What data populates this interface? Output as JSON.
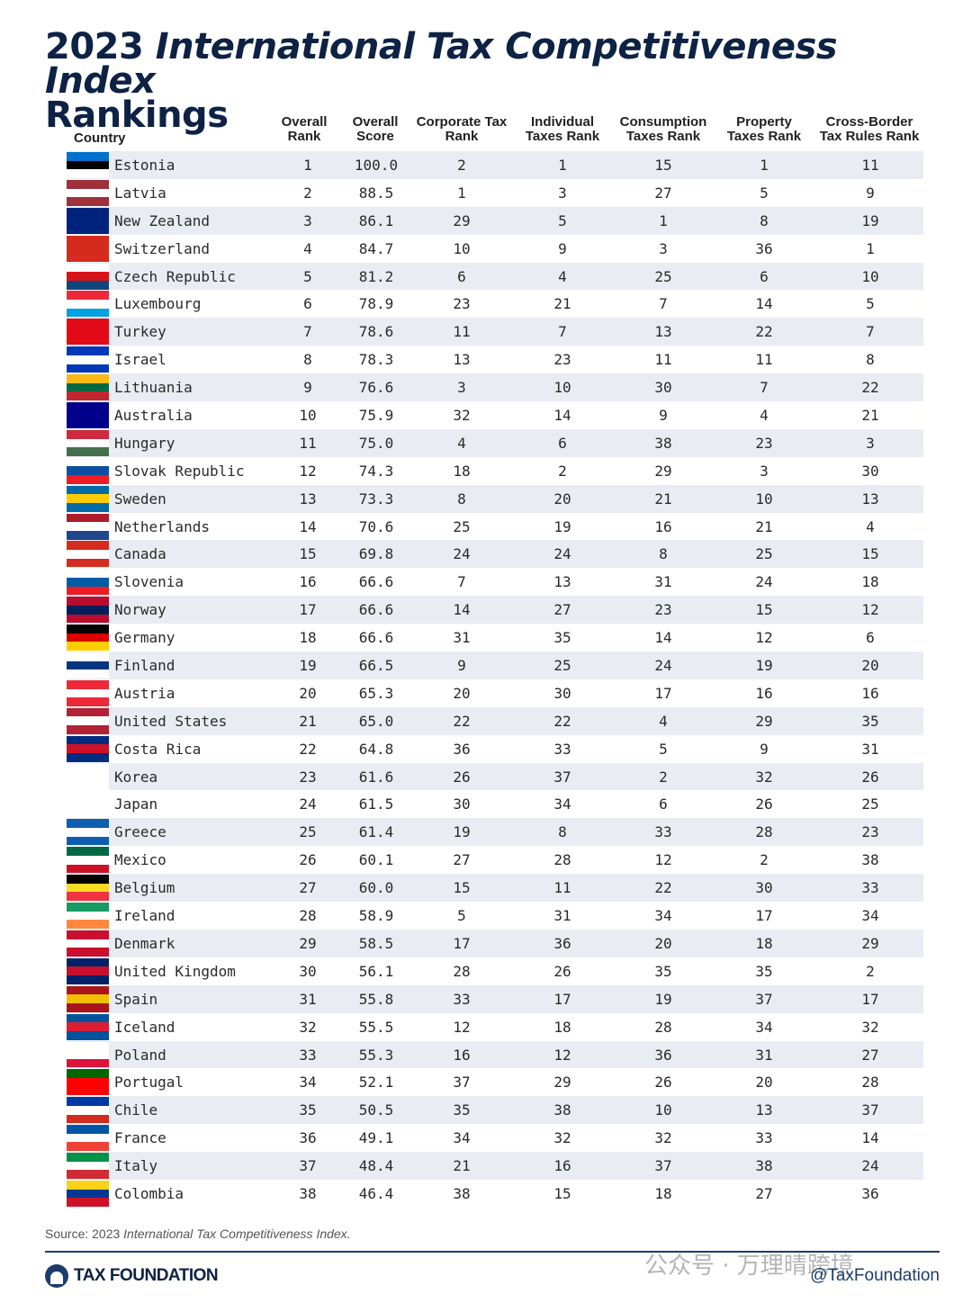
{
  "title": {
    "year": "2023",
    "italic": "International Tax Competitiveness Index",
    "line2": "Rankings"
  },
  "headers": {
    "country": "Country",
    "overall_rank": [
      "Overall",
      "Rank"
    ],
    "overall_score": [
      "Overall",
      "Score"
    ],
    "corporate": [
      "Corporate Tax",
      "Rank"
    ],
    "individual": [
      "Individual",
      "Taxes Rank"
    ],
    "consumption": [
      "Consumption",
      "Taxes Rank"
    ],
    "property": [
      "Property",
      "Taxes Rank"
    ],
    "crossborder": [
      "Cross-Border",
      "Tax Rules Rank"
    ]
  },
  "rows": [
    {
      "country": "Estonia",
      "flag": [
        "#0072ce",
        "#000000",
        "#ffffff"
      ],
      "rank": "1",
      "score": "100.0",
      "corp": "2",
      "indiv": "1",
      "cons": "15",
      "prop": "1",
      "cross": "11"
    },
    {
      "country": "Latvia",
      "flag": [
        "#9e3039",
        "#ffffff",
        "#9e3039"
      ],
      "rank": "2",
      "score": "88.5",
      "corp": "1",
      "indiv": "3",
      "cons": "27",
      "prop": "5",
      "cross": "9"
    },
    {
      "country": "New Zealand",
      "flag": [
        "#00247d",
        "#00247d",
        "#00247d"
      ],
      "rank": "3",
      "score": "86.1",
      "corp": "29",
      "indiv": "5",
      "cons": "1",
      "prop": "8",
      "cross": "19"
    },
    {
      "country": "Switzerland",
      "flag": [
        "#d52b1e",
        "#d52b1e",
        "#d52b1e"
      ],
      "rank": "4",
      "score": "84.7",
      "corp": "10",
      "indiv": "9",
      "cons": "3",
      "prop": "36",
      "cross": "1"
    },
    {
      "country": "Czech Republic",
      "flag": [
        "#ffffff",
        "#d7141a",
        "#11457e"
      ],
      "rank": "5",
      "score": "81.2",
      "corp": "6",
      "indiv": "4",
      "cons": "25",
      "prop": "6",
      "cross": "10"
    },
    {
      "country": "Luxembourg",
      "flag": [
        "#ed2939",
        "#ffffff",
        "#00a1de"
      ],
      "rank": "6",
      "score": "78.9",
      "corp": "23",
      "indiv": "21",
      "cons": "7",
      "prop": "14",
      "cross": "5"
    },
    {
      "country": "Turkey",
      "flag": [
        "#e30a17",
        "#e30a17",
        "#e30a17"
      ],
      "rank": "7",
      "score": "78.6",
      "corp": "11",
      "indiv": "7",
      "cons": "13",
      "prop": "22",
      "cross": "7"
    },
    {
      "country": "Israel",
      "flag": [
        "#0038b8",
        "#ffffff",
        "#0038b8"
      ],
      "rank": "8",
      "score": "78.3",
      "corp": "13",
      "indiv": "23",
      "cons": "11",
      "prop": "11",
      "cross": "8"
    },
    {
      "country": "Lithuania",
      "flag": [
        "#fdb913",
        "#006a44",
        "#c1272d"
      ],
      "rank": "9",
      "score": "76.6",
      "corp": "3",
      "indiv": "10",
      "cons": "30",
      "prop": "7",
      "cross": "22"
    },
    {
      "country": "Australia",
      "flag": [
        "#00008b",
        "#00008b",
        "#00008b"
      ],
      "rank": "10",
      "score": "75.9",
      "corp": "32",
      "indiv": "14",
      "cons": "9",
      "prop": "4",
      "cross": "21"
    },
    {
      "country": "Hungary",
      "flag": [
        "#cd2a3e",
        "#ffffff",
        "#436f4d"
      ],
      "rank": "11",
      "score": "75.0",
      "corp": "4",
      "indiv": "6",
      "cons": "38",
      "prop": "23",
      "cross": "3"
    },
    {
      "country": "Slovak Republic",
      "flag": [
        "#ffffff",
        "#0b4ea2",
        "#ee1c25"
      ],
      "rank": "12",
      "score": "74.3",
      "corp": "18",
      "indiv": "2",
      "cons": "29",
      "prop": "3",
      "cross": "30"
    },
    {
      "country": "Sweden",
      "flag": [
        "#006aa7",
        "#fecc00",
        "#006aa7"
      ],
      "rank": "13",
      "score": "73.3",
      "corp": "8",
      "indiv": "20",
      "cons": "21",
      "prop": "10",
      "cross": "13"
    },
    {
      "country": "Netherlands",
      "flag": [
        "#ae1c28",
        "#ffffff",
        "#21468b"
      ],
      "rank": "14",
      "score": "70.6",
      "corp": "25",
      "indiv": "19",
      "cons": "16",
      "prop": "21",
      "cross": "4"
    },
    {
      "country": "Canada",
      "flag": [
        "#d52b1e",
        "#ffffff",
        "#d52b1e"
      ],
      "rank": "15",
      "score": "69.8",
      "corp": "24",
      "indiv": "24",
      "cons": "8",
      "prop": "25",
      "cross": "15"
    },
    {
      "country": "Slovenia",
      "flag": [
        "#ffffff",
        "#005da4",
        "#ed1c24"
      ],
      "rank": "16",
      "score": "66.6",
      "corp": "7",
      "indiv": "13",
      "cons": "31",
      "prop": "24",
      "cross": "18"
    },
    {
      "country": "Norway",
      "flag": [
        "#ba0c2f",
        "#00205b",
        "#ba0c2f"
      ],
      "rank": "17",
      "score": "66.6",
      "corp": "14",
      "indiv": "27",
      "cons": "23",
      "prop": "15",
      "cross": "12"
    },
    {
      "country": "Germany",
      "flag": [
        "#000000",
        "#dd0000",
        "#ffce00"
      ],
      "rank": "18",
      "score": "66.6",
      "corp": "31",
      "indiv": "35",
      "cons": "14",
      "prop": "12",
      "cross": "6"
    },
    {
      "country": "Finland",
      "flag": [
        "#ffffff",
        "#003580",
        "#ffffff"
      ],
      "rank": "19",
      "score": "66.5",
      "corp": "9",
      "indiv": "25",
      "cons": "24",
      "prop": "19",
      "cross": "20"
    },
    {
      "country": "Austria",
      "flag": [
        "#ed2939",
        "#ffffff",
        "#ed2939"
      ],
      "rank": "20",
      "score": "65.3",
      "corp": "20",
      "indiv": "30",
      "cons": "17",
      "prop": "16",
      "cross": "16"
    },
    {
      "country": "United States",
      "flag": [
        "#b22234",
        "#ffffff",
        "#b22234"
      ],
      "rank": "21",
      "score": "65.0",
      "corp": "22",
      "indiv": "22",
      "cons": "4",
      "prop": "29",
      "cross": "35"
    },
    {
      "country": "Costa Rica",
      "flag": [
        "#002b7f",
        "#ce1126",
        "#002b7f"
      ],
      "rank": "22",
      "score": "64.8",
      "corp": "36",
      "indiv": "33",
      "cons": "5",
      "prop": "9",
      "cross": "31"
    },
    {
      "country": "Korea",
      "flag": [
        "#ffffff",
        "#ffffff",
        "#ffffff"
      ],
      "rank": "23",
      "score": "61.6",
      "corp": "26",
      "indiv": "37",
      "cons": "2",
      "prop": "32",
      "cross": "26"
    },
    {
      "country": "Japan",
      "flag": [
        "#ffffff",
        "#ffffff",
        "#ffffff"
      ],
      "rank": "24",
      "score": "61.5",
      "corp": "30",
      "indiv": "34",
      "cons": "6",
      "prop": "26",
      "cross": "25"
    },
    {
      "country": "Greece",
      "flag": [
        "#0d5eaf",
        "#ffffff",
        "#0d5eaf"
      ],
      "rank": "25",
      "score": "61.4",
      "corp": "19",
      "indiv": "8",
      "cons": "33",
      "prop": "28",
      "cross": "23"
    },
    {
      "country": "Mexico",
      "flag": [
        "#006847",
        "#ffffff",
        "#ce1126"
      ],
      "rank": "26",
      "score": "60.1",
      "corp": "27",
      "indiv": "28",
      "cons": "12",
      "prop": "2",
      "cross": "38"
    },
    {
      "country": "Belgium",
      "flag": [
        "#000000",
        "#fdda24",
        "#ef3340"
      ],
      "rank": "27",
      "score": "60.0",
      "corp": "15",
      "indiv": "11",
      "cons": "22",
      "prop": "30",
      "cross": "33"
    },
    {
      "country": "Ireland",
      "flag": [
        "#169b62",
        "#ffffff",
        "#ff883e"
      ],
      "rank": "28",
      "score": "58.9",
      "corp": "5",
      "indiv": "31",
      "cons": "34",
      "prop": "17",
      "cross": "34"
    },
    {
      "country": "Denmark",
      "flag": [
        "#c8102e",
        "#ffffff",
        "#c8102e"
      ],
      "rank": "29",
      "score": "58.5",
      "corp": "17",
      "indiv": "36",
      "cons": "20",
      "prop": "18",
      "cross": "29"
    },
    {
      "country": "United Kingdom",
      "flag": [
        "#012169",
        "#c8102e",
        "#012169"
      ],
      "rank": "30",
      "score": "56.1",
      "corp": "28",
      "indiv": "26",
      "cons": "35",
      "prop": "35",
      "cross": "2"
    },
    {
      "country": "Spain",
      "flag": [
        "#aa151b",
        "#f1bf00",
        "#aa151b"
      ],
      "rank": "31",
      "score": "55.8",
      "corp": "33",
      "indiv": "17",
      "cons": "19",
      "prop": "37",
      "cross": "17"
    },
    {
      "country": "Iceland",
      "flag": [
        "#02529c",
        "#dc1e35",
        "#02529c"
      ],
      "rank": "32",
      "score": "55.5",
      "corp": "12",
      "indiv": "18",
      "cons": "28",
      "prop": "34",
      "cross": "32"
    },
    {
      "country": "Poland",
      "flag": [
        "#ffffff",
        "#ffffff",
        "#dc143c"
      ],
      "rank": "33",
      "score": "55.3",
      "corp": "16",
      "indiv": "12",
      "cons": "36",
      "prop": "31",
      "cross": "27"
    },
    {
      "country": "Portugal",
      "flag": [
        "#006600",
        "#ff0000",
        "#ff0000"
      ],
      "rank": "34",
      "score": "52.1",
      "corp": "37",
      "indiv": "29",
      "cons": "26",
      "prop": "20",
      "cross": "28"
    },
    {
      "country": "Chile",
      "flag": [
        "#0039a6",
        "#ffffff",
        "#d52b1e"
      ],
      "rank": "35",
      "score": "50.5",
      "corp": "35",
      "indiv": "38",
      "cons": "10",
      "prop": "13",
      "cross": "37"
    },
    {
      "country": "France",
      "flag": [
        "#0055a4",
        "#ffffff",
        "#ef4135"
      ],
      "rank": "36",
      "score": "49.1",
      "corp": "34",
      "indiv": "32",
      "cons": "32",
      "prop": "33",
      "cross": "14"
    },
    {
      "country": "Italy",
      "flag": [
        "#009246",
        "#ffffff",
        "#ce2b37"
      ],
      "rank": "37",
      "score": "48.4",
      "corp": "21",
      "indiv": "16",
      "cons": "37",
      "prop": "38",
      "cross": "24"
    },
    {
      "country": "Colombia",
      "flag": [
        "#fcd116",
        "#003893",
        "#ce1126"
      ],
      "rank": "38",
      "score": "46.4",
      "corp": "38",
      "indiv": "15",
      "cons": "18",
      "prop": "27",
      "cross": "36"
    }
  ],
  "source": {
    "prefix": "Source: 2023 ",
    "italic": "International Tax Competitiveness Index."
  },
  "brand": {
    "name": "TAX FOUNDATION",
    "logo_icon": "capitol-dome-icon",
    "handle": "@TaxFoundation"
  },
  "watermark": "公众号 · 万理晴跨境"
}
